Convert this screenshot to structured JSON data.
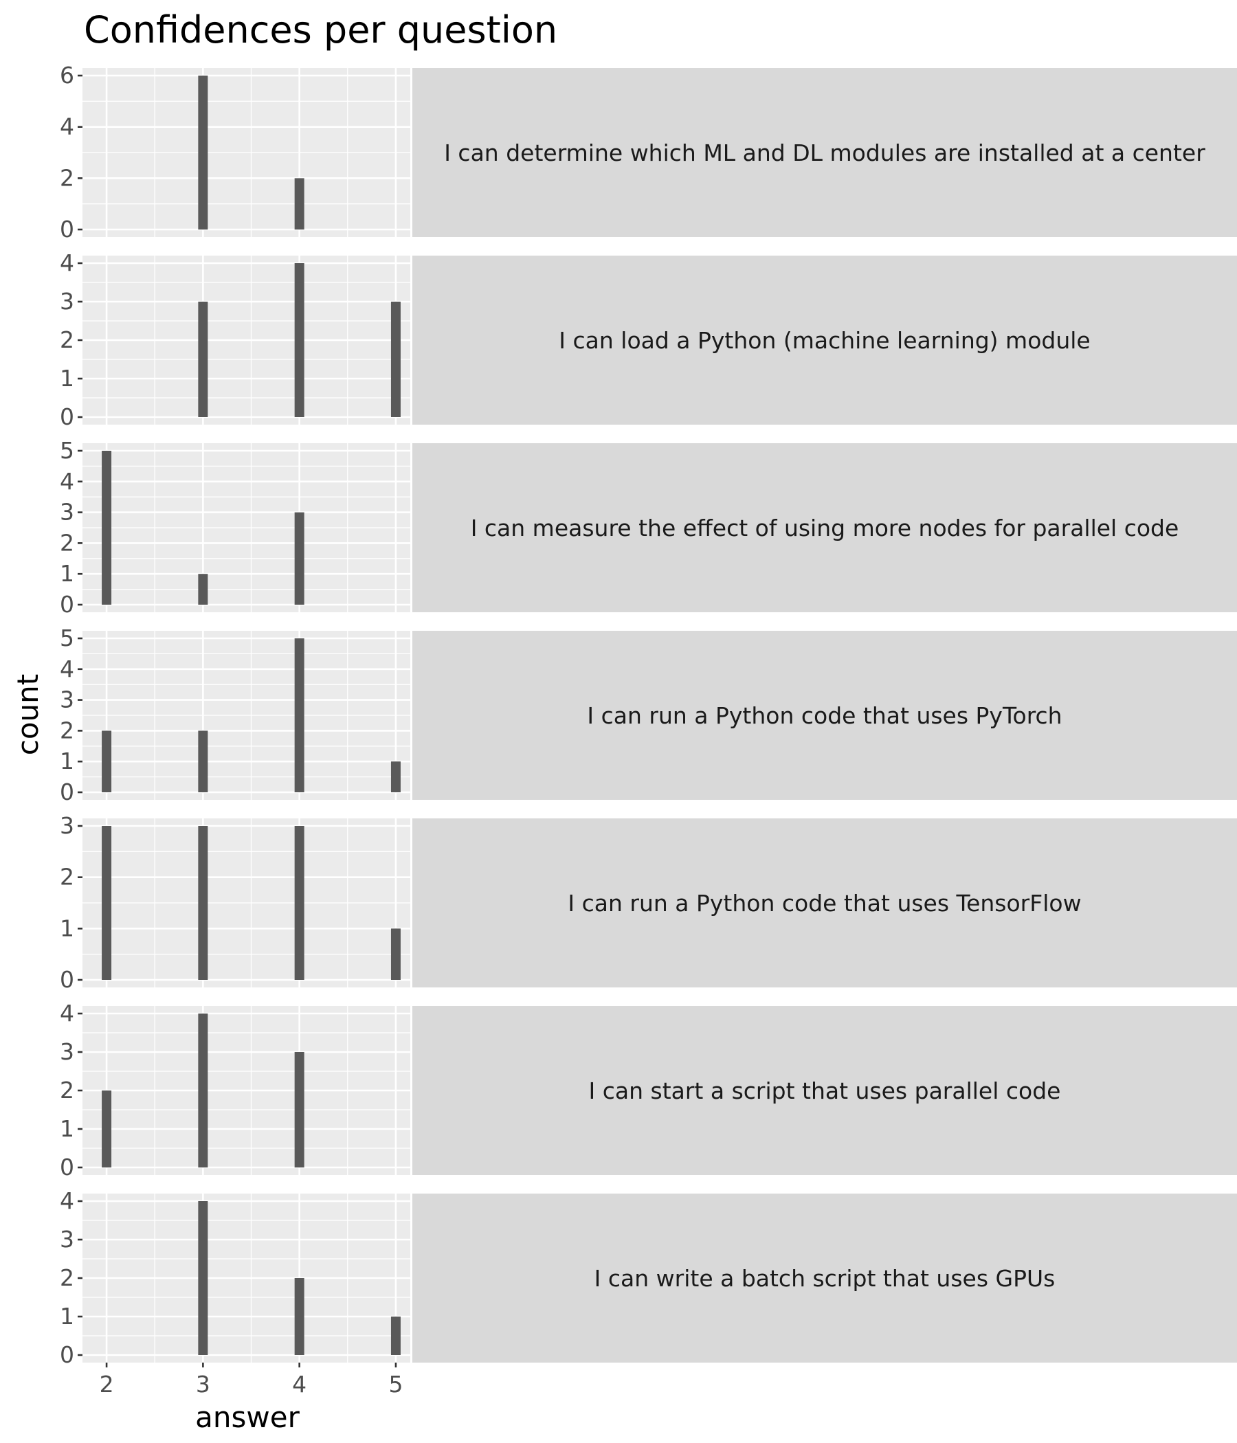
{
  "chart_data": {
    "type": "bar",
    "title": "Confidences per question",
    "xlabel": "answer",
    "ylabel": "count",
    "x_ticks": [
      2,
      3,
      4,
      5
    ],
    "xlim": [
      1.75,
      5.15
    ],
    "bar_color": "#595959",
    "panel_background": "#ebebeb",
    "strip_background": "#d9d9d9",
    "grid": true,
    "facets": [
      {
        "label": "I can determine which ML and DL modules are installed at a center",
        "x": [
          3,
          4
        ],
        "values": [
          6,
          2
        ],
        "ylim": [
          0,
          6
        ],
        "y_ticks": [
          0,
          2,
          4,
          6
        ]
      },
      {
        "label": "I can load a Python (machine learning) module",
        "x": [
          3,
          4,
          5
        ],
        "values": [
          3,
          4,
          3
        ],
        "ylim": [
          0,
          4
        ],
        "y_ticks": [
          0,
          1,
          2,
          3,
          4
        ]
      },
      {
        "label": "I can measure the effect of using more nodes for parallel code",
        "x": [
          2,
          3,
          4
        ],
        "values": [
          5,
          1,
          3
        ],
        "ylim": [
          0,
          5
        ],
        "y_ticks": [
          0,
          1,
          2,
          3,
          4,
          5
        ]
      },
      {
        "label": "I can run a Python code that uses PyTorch",
        "x": [
          2,
          3,
          4,
          5
        ],
        "values": [
          2,
          2,
          5,
          1
        ],
        "ylim": [
          0,
          5
        ],
        "y_ticks": [
          0,
          1,
          2,
          3,
          4,
          5
        ]
      },
      {
        "label": "I can run a Python code that uses TensorFlow",
        "x": [
          2,
          3,
          4,
          5
        ],
        "values": [
          3,
          3,
          3,
          1
        ],
        "ylim": [
          0,
          3
        ],
        "y_ticks": [
          0,
          1,
          2,
          3
        ]
      },
      {
        "label": "I can start a script that uses parallel code",
        "x": [
          2,
          3,
          4
        ],
        "values": [
          2,
          4,
          3
        ],
        "ylim": [
          0,
          4
        ],
        "y_ticks": [
          0,
          1,
          2,
          3,
          4
        ]
      },
      {
        "label": "I can write a batch script that uses GPUs",
        "x": [
          3,
          4,
          5
        ],
        "values": [
          4,
          2,
          1
        ],
        "ylim": [
          0,
          4
        ],
        "y_ticks": [
          0,
          1,
          2,
          3,
          4
        ]
      }
    ]
  }
}
